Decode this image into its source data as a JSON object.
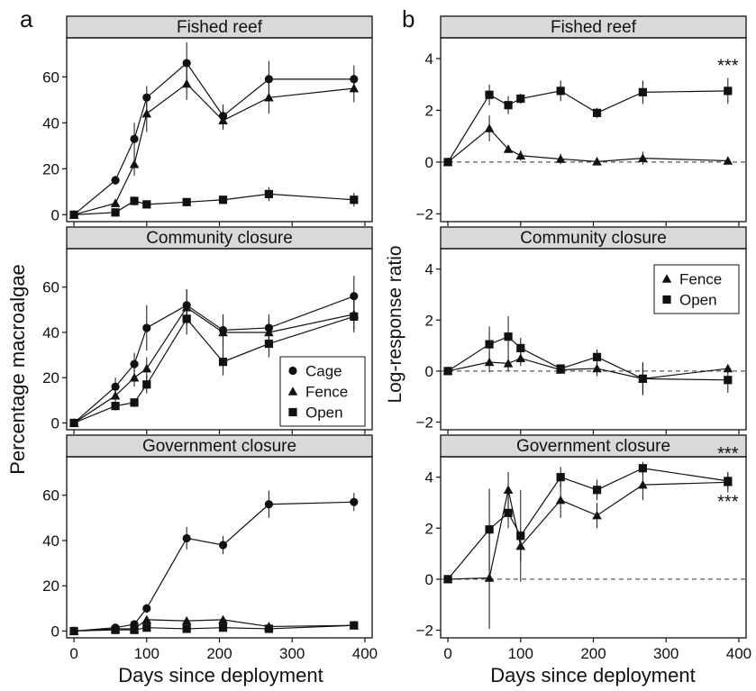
{
  "figure": {
    "x_title": "Days since deployment",
    "y_title_left": "Percentage macroalgae",
    "y_title_right": "Log-response ratio",
    "panel_label_a": "a",
    "panel_label_b": "b"
  },
  "chart_data": [
    {
      "id": "a-fished",
      "type": "line",
      "title": "Fished reef",
      "xlim": [
        -10,
        410
      ],
      "ylim": [
        -3,
        77
      ],
      "xticks": [
        0,
        100,
        200,
        300,
        400
      ],
      "yticks": [
        0,
        20,
        40,
        60
      ],
      "x": [
        0,
        57,
        83,
        100,
        155,
        205,
        268,
        385
      ],
      "series": [
        {
          "name": "Cage",
          "marker": "circle",
          "values": [
            0,
            15,
            33,
            51,
            66,
            43,
            59,
            59
          ],
          "errors": [
            0,
            2,
            7,
            5,
            9,
            5,
            8,
            6
          ]
        },
        {
          "name": "Fence",
          "marker": "triangle",
          "values": [
            0,
            5,
            22,
            44,
            57,
            41,
            51,
            55
          ],
          "errors": [
            0,
            1,
            5,
            8,
            7,
            4,
            7,
            6
          ]
        },
        {
          "name": "Open",
          "marker": "square",
          "values": [
            0,
            1,
            6,
            4.5,
            5.5,
            6.5,
            9,
            6.5
          ],
          "errors": [
            0,
            0.5,
            2,
            1,
            1.5,
            1.5,
            3,
            3
          ]
        }
      ]
    },
    {
      "id": "a-community",
      "type": "line",
      "title": "Community closure",
      "xlim": [
        -10,
        410
      ],
      "ylim": [
        -3,
        77
      ],
      "xticks": [
        0,
        100,
        200,
        300,
        400
      ],
      "yticks": [
        0,
        20,
        40,
        60
      ],
      "legend": "bottom-right",
      "x": [
        0,
        57,
        83,
        100,
        155,
        205,
        268,
        385
      ],
      "series": [
        {
          "name": "Cage",
          "marker": "circle",
          "values": [
            0,
            16,
            26,
            42,
            52,
            41,
            42,
            56
          ],
          "errors": [
            0,
            4,
            5,
            10,
            7,
            7,
            6,
            9
          ]
        },
        {
          "name": "Fence",
          "marker": "triangle",
          "values": [
            0,
            12,
            20,
            24,
            51,
            40,
            40,
            48
          ],
          "errors": [
            0,
            3,
            4,
            5,
            8,
            7,
            6,
            7
          ]
        },
        {
          "name": "Open",
          "marker": "square",
          "values": [
            0,
            7.5,
            9,
            17,
            46,
            27,
            35,
            47
          ],
          "errors": [
            0,
            2,
            2,
            4,
            7,
            6,
            6,
            7
          ]
        }
      ]
    },
    {
      "id": "a-government",
      "type": "line",
      "title": "Government closure",
      "xlim": [
        -10,
        410
      ],
      "ylim": [
        -3,
        77
      ],
      "xticks": [
        0,
        100,
        200,
        300,
        400
      ],
      "yticks": [
        0,
        20,
        40,
        60
      ],
      "x": [
        0,
        57,
        83,
        100,
        155,
        205,
        268,
        385
      ],
      "series": [
        {
          "name": "Cage",
          "marker": "circle",
          "values": [
            0,
            1.5,
            3,
            10,
            41,
            38,
            56,
            57
          ],
          "errors": [
            0,
            1,
            1,
            2,
            5,
            4,
            6,
            4
          ]
        },
        {
          "name": "Fence",
          "marker": "triangle",
          "values": [
            0,
            1,
            1,
            5,
            4.5,
            5,
            2,
            2.5
          ],
          "errors": [
            0,
            0.5,
            0.5,
            1,
            1,
            1,
            1,
            1
          ]
        },
        {
          "name": "Open",
          "marker": "square",
          "values": [
            0,
            0.5,
            0.5,
            1.5,
            1,
            1.5,
            1,
            2.5
          ],
          "errors": [
            0,
            0.3,
            0.3,
            0.5,
            0.5,
            0.5,
            0.5,
            0.5
          ]
        }
      ]
    },
    {
      "id": "b-fished",
      "type": "line",
      "title": "Fished reef",
      "xlim": [
        -10,
        410
      ],
      "ylim": [
        -2.3,
        4.8
      ],
      "xticks": [
        0,
        100,
        200,
        300,
        400
      ],
      "yticks": [
        -2,
        0,
        2,
        4
      ],
      "reference_line": 0,
      "annotations": [
        {
          "text": "***",
          "x": 385,
          "y": 3.5
        }
      ],
      "x": [
        0,
        57,
        83,
        100,
        155,
        205,
        268,
        385
      ],
      "series": [
        {
          "name": "Fence",
          "marker": "triangle",
          "values": [
            0,
            1.3,
            0.5,
            0.25,
            0.12,
            0.02,
            0.15,
            0.05
          ],
          "errors": [
            0,
            0.5,
            0.15,
            0.2,
            0.2,
            0.1,
            0.25,
            0.1
          ]
        },
        {
          "name": "Open",
          "marker": "square",
          "values": [
            0,
            2.6,
            2.2,
            2.45,
            2.75,
            1.9,
            2.7,
            2.75
          ],
          "errors": [
            0,
            0.4,
            0.35,
            0.2,
            0.4,
            0.2,
            0.45,
            0.5
          ]
        }
      ]
    },
    {
      "id": "b-community",
      "type": "line",
      "title": "Community closure",
      "xlim": [
        -10,
        410
      ],
      "ylim": [
        -2.3,
        4.8
      ],
      "xticks": [
        0,
        100,
        200,
        300,
        400
      ],
      "yticks": [
        -2,
        0,
        2,
        4
      ],
      "reference_line": 0,
      "legend": "top-right",
      "x": [
        0,
        57,
        83,
        100,
        155,
        205,
        268,
        385
      ],
      "series": [
        {
          "name": "Fence",
          "marker": "triangle",
          "values": [
            0,
            0.35,
            0.3,
            0.5,
            0.05,
            0.1,
            -0.3,
            0.1
          ],
          "errors": [
            0,
            0.4,
            0.3,
            0.3,
            0.15,
            0.3,
            0.6,
            0.15
          ]
        },
        {
          "name": "Open",
          "marker": "square",
          "values": [
            0,
            1.05,
            1.35,
            0.9,
            0.1,
            0.55,
            -0.3,
            -0.35
          ],
          "errors": [
            0,
            0.7,
            0.8,
            0.4,
            0.15,
            0.3,
            0.65,
            0.5
          ]
        }
      ]
    },
    {
      "id": "b-government",
      "type": "line",
      "title": "Government closure",
      "xlim": [
        -10,
        410
      ],
      "ylim": [
        -2.3,
        4.8
      ],
      "xticks": [
        0,
        100,
        200,
        300,
        400
      ],
      "yticks": [
        -2,
        0,
        2,
        4
      ],
      "reference_line": 0,
      "annotations": [
        {
          "text": "***",
          "x": 385,
          "y": 4.7
        },
        {
          "text": "***",
          "x": 385,
          "y": 2.8
        }
      ],
      "x": [
        0,
        57,
        83,
        100,
        155,
        205,
        268,
        385
      ],
      "series": [
        {
          "name": "Fence",
          "marker": "triangle",
          "values": [
            0,
            0.05,
            3.5,
            1.3,
            3.1,
            2.5,
            3.7,
            3.8
          ],
          "errors": [
            0,
            2,
            0.7,
            0.6,
            0.7,
            0.5,
            0.6,
            0.4
          ]
        },
        {
          "name": "Open",
          "marker": "square",
          "values": [
            0,
            1.95,
            2.6,
            1.7,
            4.0,
            3.5,
            4.35,
            3.85
          ],
          "errors": [
            0,
            1.6,
            0.6,
            1.8,
            0.4,
            0.4,
            0.25,
            0.3
          ]
        }
      ]
    }
  ]
}
